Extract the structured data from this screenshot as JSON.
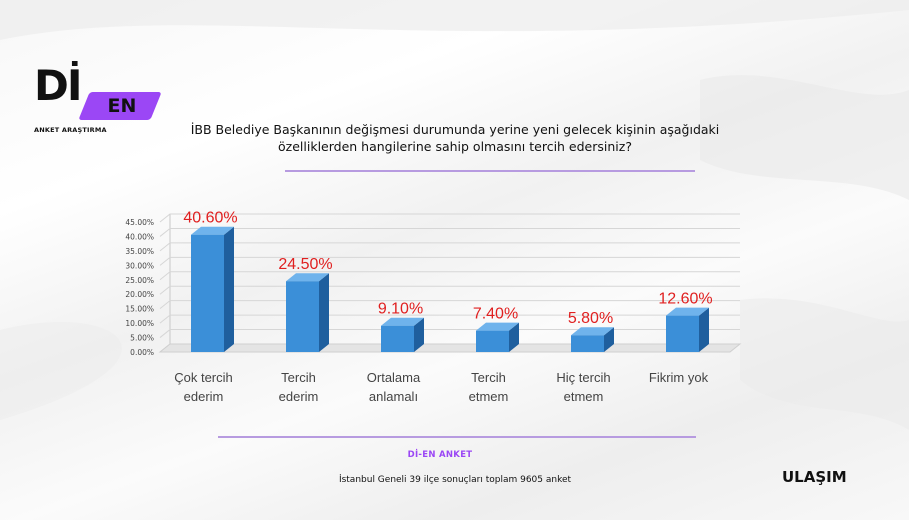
{
  "brand": {
    "logo_main": "Dİ",
    "logo_en": "EN",
    "logo_sub": "ANKET ARAŞTIRMA"
  },
  "question": {
    "line1": "İBB Belediye Başkanının değişmesi durumunda yerine yeni gelecek kişinin aşağıdaki",
    "line2": "özelliklerden hangilerine sahip olmasını tercih edersiniz?"
  },
  "chart_data": {
    "type": "bar",
    "categories": [
      [
        "Çok tercih",
        "ederim"
      ],
      [
        "Tercih",
        "ederim"
      ],
      [
        "Ortalama",
        "anlamalı"
      ],
      [
        "Tercih",
        "etmem"
      ],
      [
        "Hiç tercih",
        "etmem"
      ],
      [
        "Fikrim yok"
      ]
    ],
    "values": [
      40.6,
      24.5,
      9.1,
      7.4,
      5.8,
      12.6
    ],
    "data_labels": [
      "40.60%",
      "24.50%",
      "9.10%",
      "7.40%",
      "5.80%",
      "12.60%"
    ],
    "y_ticks": [
      "0.00%",
      "5.00%",
      "10.00%",
      "15.00%",
      "20.00%",
      "25.00%",
      "30.00%",
      "35.00%",
      "40.00%",
      "45.00%"
    ],
    "ylim": [
      0,
      45
    ],
    "grid": true,
    "bar_style": "3d",
    "colors": {
      "bar_front": "#3b8fd8",
      "bar_top": "#6fb3ec",
      "bar_side": "#1f5f9e",
      "data_label": "#e02020",
      "grid": "#d6d6d6"
    },
    "title": "",
    "xlabel": "",
    "ylabel": ""
  },
  "footer": {
    "title": "Dİ-EN ANKET",
    "note": "İstanbul Geneli 39 ilçe sonuçları toplam 9605 anket",
    "badge": "ULAŞIM"
  },
  "colors": {
    "accent": "#9b47f5",
    "rule": "#b79be0"
  }
}
